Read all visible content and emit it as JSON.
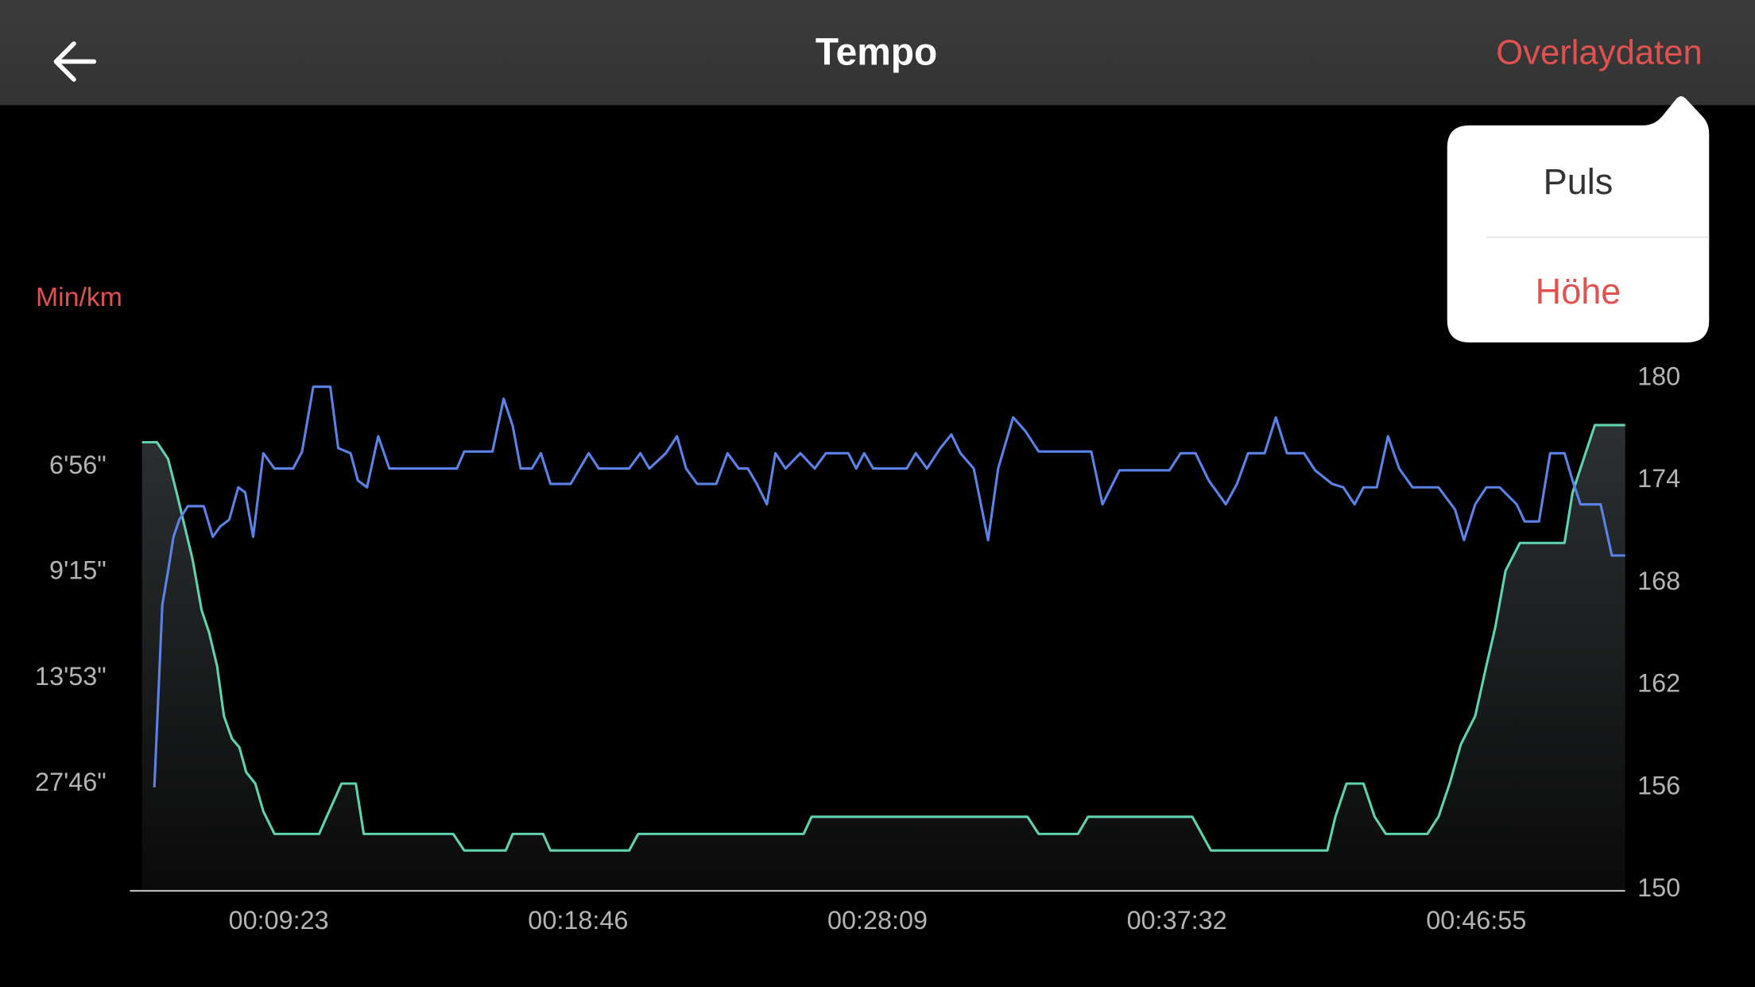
{
  "header": {
    "title": "Tempo",
    "action": "Overlaydaten"
  },
  "menu": {
    "items": [
      "Puls",
      "Höhe"
    ]
  },
  "chart_data": {
    "type": "line",
    "y_label": "Min/km",
    "xlim": [
      283,
      3095
    ],
    "xticks": [
      {
        "value": 563,
        "label": "00:09:23"
      },
      {
        "value": 1126,
        "label": "00:18:46"
      },
      {
        "value": 1689,
        "label": "00:28:09"
      },
      {
        "value": 2252,
        "label": "00:37:32"
      },
      {
        "value": 2815,
        "label": "00:46:55"
      }
    ],
    "ylim": [
      0,
      10.46
    ],
    "yticks": [
      {
        "value": 8.65,
        "label": "6'56\""
      },
      {
        "value": 6.49,
        "label": "9'15\""
      },
      {
        "value": 4.32,
        "label": "13'53\""
      },
      {
        "value": 2.16,
        "label": "27'46\""
      }
    ],
    "y2lim": [
      150,
      180
    ],
    "y2ticks": [
      150,
      156,
      162,
      168,
      174,
      180
    ],
    "series": [
      {
        "color": "#5fd3b0",
        "fill": true,
        "x": [
          306,
          334,
          355,
          371,
          386,
          401,
          418,
          432,
          447,
          460,
          475,
          489,
          502,
          519,
          534,
          555,
          639,
          653,
          670,
          681,
          708,
          723,
          891,
          912,
          990,
          1003,
          1060,
          1074,
          1222,
          1239,
          1550,
          1565,
          1971,
          1992,
          2066,
          2085,
          2281,
          2316,
          2535,
          2550,
          2571,
          2603,
          2624,
          2645,
          2723,
          2744,
          2765,
          2786,
          2813,
          2834,
          2851,
          2870,
          2897,
          2981,
          2996,
          3017,
          3038,
          3095
        ],
        "values": [
          9.15,
          9.15,
          8.81,
          8.12,
          7.44,
          6.75,
          5.72,
          5.26,
          4.58,
          3.55,
          3.09,
          2.91,
          2.4,
          2.17,
          1.6,
          1.14,
          1.14,
          1.49,
          1.9,
          2.17,
          2.17,
          1.14,
          1.14,
          0.8,
          0.8,
          1.14,
          1.14,
          0.8,
          0.8,
          1.14,
          1.14,
          1.49,
          1.49,
          1.14,
          1.14,
          1.49,
          1.49,
          0.8,
          0.8,
          1.49,
          2.17,
          2.17,
          1.49,
          1.14,
          1.14,
          1.49,
          2.17,
          2.97,
          3.55,
          4.58,
          5.38,
          6.52,
          7.09,
          7.09,
          8.12,
          8.81,
          9.5,
          9.5
        ]
      },
      {
        "color": "#5b82e6",
        "axis": "y2",
        "x": [
          329,
          344,
          355,
          365,
          376,
          392,
          422,
          439,
          453,
          470,
          487,
          500,
          515,
          534,
          555,
          590,
          607,
          628,
          660,
          675,
          698,
          712,
          729,
          750,
          771,
          898,
          912,
          965,
          986,
          1003,
          1018,
          1039,
          1056,
          1074,
          1112,
          1146,
          1165,
          1222,
          1243,
          1260,
          1291,
          1312,
          1329,
          1350,
          1386,
          1407,
          1428,
          1445,
          1462,
          1481,
          1497,
          1516,
          1544,
          1571,
          1592,
          1634,
          1649,
          1664,
          1681,
          1744,
          1761,
          1782,
          1807,
          1828,
          1845,
          1870,
          1897,
          1916,
          1944,
          1967,
          1992,
          2091,
          2112,
          2144,
          2238,
          2259,
          2287,
          2312,
          2344,
          2365,
          2386,
          2417,
          2438,
          2459,
          2491,
          2512,
          2544,
          2565,
          2586,
          2603,
          2628,
          2649,
          2670,
          2695,
          2744,
          2775,
          2792,
          2813,
          2834,
          2859,
          2891,
          2906,
          2933,
          2954,
          2981,
          2996,
          3011,
          3049,
          3070,
          3095
        ],
        "values": [
          156.0,
          166.7,
          168.7,
          170.7,
          171.7,
          172.5,
          172.5,
          170.7,
          171.3,
          171.7,
          173.6,
          173.3,
          170.7,
          175.6,
          174.7,
          174.7,
          175.7,
          179.5,
          179.5,
          175.9,
          175.6,
          174.0,
          173.6,
          176.6,
          174.7,
          174.7,
          175.7,
          175.7,
          178.8,
          177.2,
          174.7,
          174.7,
          175.6,
          173.8,
          173.8,
          175.6,
          174.7,
          174.7,
          175.6,
          174.7,
          175.6,
          176.6,
          174.7,
          173.8,
          173.8,
          175.6,
          174.7,
          174.7,
          173.8,
          172.6,
          175.6,
          174.7,
          175.6,
          174.7,
          175.6,
          175.6,
          174.7,
          175.6,
          174.7,
          174.7,
          175.6,
          174.7,
          175.9,
          176.7,
          175.6,
          174.7,
          170.5,
          174.7,
          177.7,
          176.9,
          175.7,
          175.7,
          172.6,
          174.6,
          174.6,
          175.6,
          175.6,
          174.0,
          172.6,
          173.8,
          175.6,
          175.6,
          177.7,
          175.6,
          175.6,
          174.6,
          173.8,
          173.6,
          172.6,
          173.6,
          173.6,
          176.6,
          174.7,
          173.6,
          173.6,
          172.3,
          170.5,
          172.6,
          173.6,
          173.6,
          172.6,
          171.6,
          171.6,
          175.6,
          175.6,
          174.0,
          172.6,
          172.6,
          169.6,
          169.6
        ]
      }
    ]
  }
}
